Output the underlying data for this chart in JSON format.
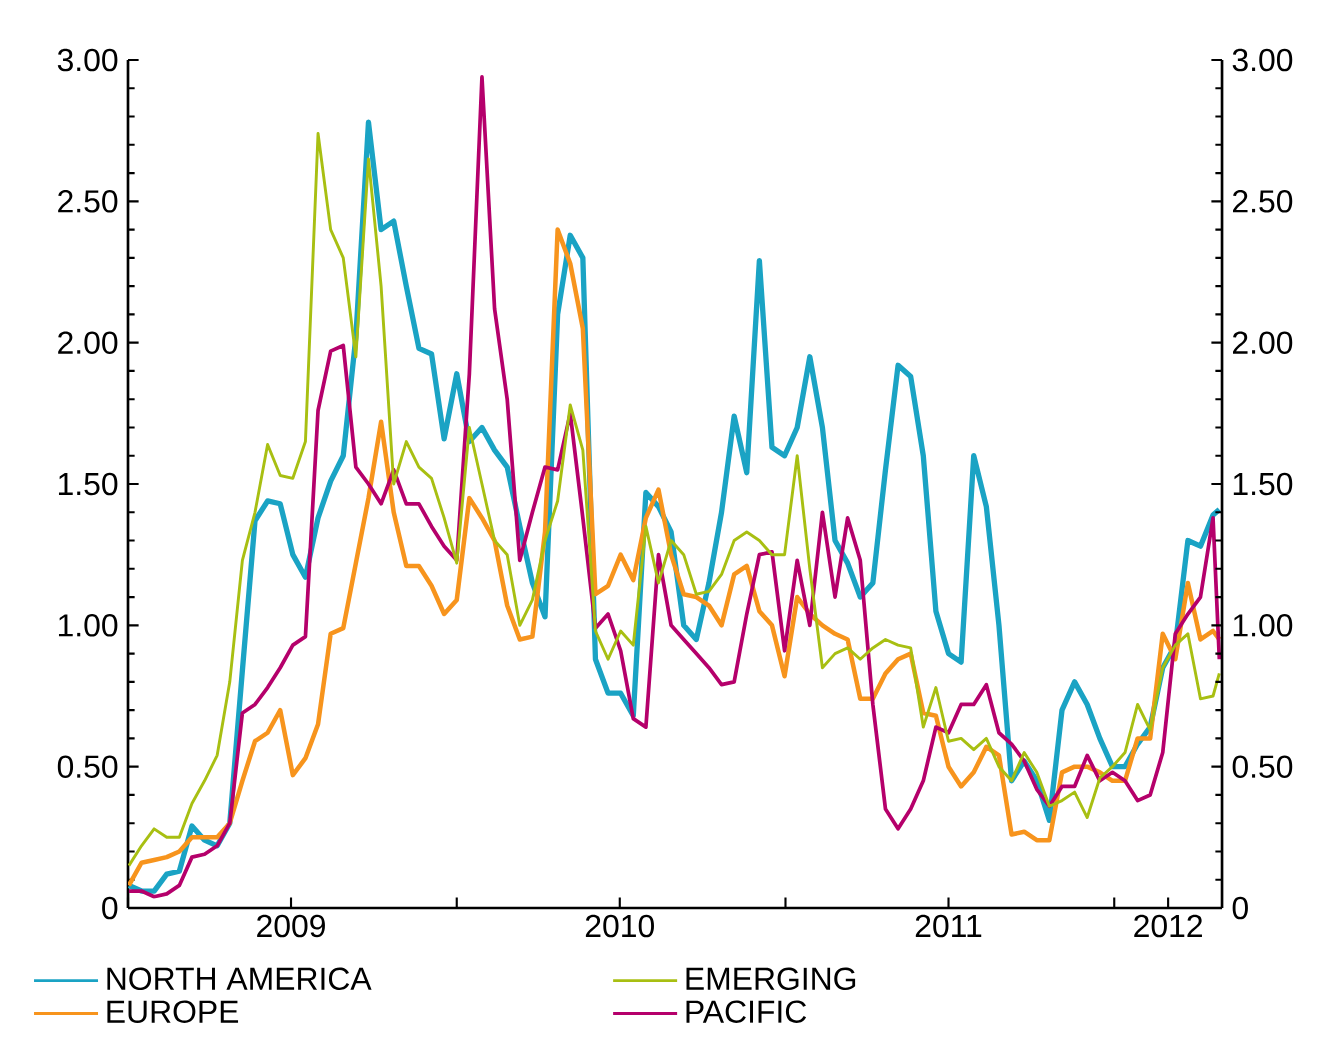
{
  "chart_data": {
    "type": "line",
    "x": [
      "2009-01-02",
      "2009-01-16",
      "2009-01-30",
      "2009-02-13",
      "2009-02-27",
      "2009-03-13",
      "2009-03-27",
      "2009-04-10",
      "2009-04-24",
      "2009-05-08",
      "2009-05-22",
      "2009-06-05",
      "2009-06-19",
      "2009-07-03",
      "2009-07-17",
      "2009-07-31",
      "2009-08-14",
      "2009-08-28",
      "2009-09-11",
      "2009-09-25",
      "2009-10-09",
      "2009-10-23",
      "2009-11-06",
      "2009-11-20",
      "2009-12-04",
      "2009-12-18",
      "2010-01-01",
      "2010-01-15",
      "2010-01-29",
      "2010-02-12",
      "2010-02-26",
      "2010-03-12",
      "2010-03-26",
      "2010-04-09",
      "2010-04-23",
      "2010-05-07",
      "2010-05-21",
      "2010-06-04",
      "2010-06-18",
      "2010-07-02",
      "2010-07-16",
      "2010-07-30",
      "2010-08-13",
      "2010-08-27",
      "2010-09-10",
      "2010-09-24",
      "2010-10-08",
      "2010-10-22",
      "2010-11-05",
      "2010-11-19",
      "2010-12-03",
      "2010-12-17",
      "2010-12-31",
      "2011-01-14",
      "2011-01-28",
      "2011-02-11",
      "2011-02-25",
      "2011-03-11",
      "2011-03-25",
      "2011-04-08",
      "2011-04-22",
      "2011-05-06",
      "2011-05-20",
      "2011-06-03",
      "2011-06-17",
      "2011-07-01",
      "2011-07-15",
      "2011-07-29",
      "2011-08-12",
      "2011-08-26",
      "2011-09-09",
      "2011-09-23",
      "2011-10-07",
      "2011-10-21",
      "2011-11-04",
      "2011-11-18",
      "2011-12-02",
      "2011-12-16",
      "2011-12-30",
      "2012-01-13",
      "2012-01-27",
      "2012-02-10",
      "2012-02-24",
      "2012-03-09",
      "2012-03-23",
      "2012-04-06",
      "2012-04-20",
      "2012-04-27"
    ],
    "series": [
      {
        "name": "NORTH AMERICA",
        "color": "#1aa3c4",
        "values": [
          0.08,
          0.06,
          0.06,
          0.12,
          0.13,
          0.29,
          0.24,
          0.22,
          0.3,
          0.84,
          1.37,
          1.44,
          1.43,
          1.25,
          1.17,
          1.38,
          1.51,
          1.6,
          2.02,
          2.78,
          2.4,
          2.43,
          2.2,
          1.98,
          1.96,
          1.66,
          1.89,
          1.65,
          1.7,
          1.62,
          1.56,
          1.35,
          1.15,
          1.03,
          2.1,
          2.38,
          2.3,
          0.88,
          0.76,
          0.76,
          0.68,
          1.47,
          1.42,
          1.33,
          1.0,
          0.95,
          1.15,
          1.4,
          1.74,
          1.54,
          2.29,
          1.63,
          1.6,
          1.7,
          1.95,
          1.7,
          1.3,
          1.22,
          1.1,
          1.15,
          1.55,
          1.92,
          1.88,
          1.6,
          1.05,
          0.9,
          0.87,
          1.6,
          1.42,
          1.0,
          0.45,
          0.52,
          0.45,
          0.31,
          0.7,
          0.8,
          0.72,
          0.6,
          0.5,
          0.5,
          0.58,
          0.64,
          0.85,
          0.93,
          1.3,
          1.28,
          1.39,
          1.41
        ]
      },
      {
        "name": "EUROPE",
        "color": "#f7941d",
        "values": [
          0.08,
          0.16,
          0.17,
          0.18,
          0.2,
          0.25,
          0.25,
          0.25,
          0.3,
          0.45,
          0.59,
          0.62,
          0.7,
          0.47,
          0.53,
          0.65,
          0.97,
          0.99,
          1.22,
          1.45,
          1.72,
          1.4,
          1.21,
          1.21,
          1.14,
          1.04,
          1.09,
          1.45,
          1.38,
          1.3,
          1.07,
          0.95,
          0.96,
          1.33,
          2.4,
          2.28,
          2.05,
          1.11,
          1.14,
          1.25,
          1.16,
          1.38,
          1.48,
          1.25,
          1.11,
          1.1,
          1.07,
          1.0,
          1.18,
          1.21,
          1.05,
          1.0,
          0.82,
          1.1,
          1.04,
          1.0,
          0.97,
          0.95,
          0.74,
          0.74,
          0.83,
          0.88,
          0.9,
          0.69,
          0.68,
          0.5,
          0.43,
          0.48,
          0.57,
          0.54,
          0.26,
          0.27,
          0.24,
          0.24,
          0.48,
          0.5,
          0.5,
          0.48,
          0.45,
          0.45,
          0.6,
          0.6,
          0.97,
          0.88,
          1.15,
          0.95,
          0.98,
          0.95
        ]
      },
      {
        "name": "PACIFIC",
        "color": "#b5006b",
        "values": [
          0.06,
          0.06,
          0.04,
          0.05,
          0.08,
          0.18,
          0.19,
          0.22,
          0.3,
          0.69,
          0.72,
          0.78,
          0.85,
          0.93,
          0.96,
          1.76,
          1.97,
          1.99,
          1.56,
          1.5,
          1.43,
          1.55,
          1.43,
          1.43,
          1.35,
          1.28,
          1.23,
          1.89,
          2.94,
          2.12,
          1.8,
          1.23,
          1.4,
          1.56,
          1.55,
          1.75,
          1.38,
          0.99,
          1.04,
          0.91,
          0.67,
          0.64,
          1.25,
          1.0,
          0.95,
          0.9,
          0.85,
          0.79,
          0.8,
          1.04,
          1.25,
          1.26,
          0.91,
          1.23,
          1.0,
          1.4,
          1.1,
          1.38,
          1.23,
          0.72,
          0.35,
          0.28,
          0.35,
          0.45,
          0.64,
          0.62,
          0.72,
          0.72,
          0.79,
          0.62,
          0.58,
          0.52,
          0.42,
          0.36,
          0.43,
          0.43,
          0.54,
          0.45,
          0.48,
          0.45,
          0.38,
          0.4,
          0.55,
          0.97,
          1.04,
          1.1,
          1.38,
          0.88
        ]
      },
      {
        "name": "EMERGING",
        "color": "#a8bf12",
        "values": [
          0.15,
          0.22,
          0.28,
          0.25,
          0.25,
          0.37,
          0.45,
          0.54,
          0.8,
          1.23,
          1.4,
          1.64,
          1.53,
          1.52,
          1.65,
          2.74,
          2.4,
          2.3,
          1.95,
          2.65,
          2.2,
          1.5,
          1.65,
          1.56,
          1.52,
          1.38,
          1.22,
          1.7,
          1.5,
          1.3,
          1.25,
          1.0,
          1.09,
          1.3,
          1.44,
          1.78,
          1.62,
          0.98,
          0.88,
          0.98,
          0.93,
          1.35,
          1.15,
          1.3,
          1.25,
          1.11,
          1.12,
          1.18,
          1.3,
          1.33,
          1.3,
          1.25,
          1.25,
          1.6,
          1.2,
          0.85,
          0.9,
          0.92,
          0.88,
          0.92,
          0.95,
          0.93,
          0.92,
          0.64,
          0.78,
          0.59,
          0.6,
          0.56,
          0.6,
          0.5,
          0.45,
          0.55,
          0.48,
          0.36,
          0.38,
          0.41,
          0.32,
          0.46,
          0.5,
          0.55,
          0.72,
          0.63,
          0.85,
          0.93,
          0.97,
          0.74,
          0.75,
          0.83
        ]
      }
    ],
    "xlim": [
      "2009-01-01",
      "2012-04-30"
    ],
    "xticks": [
      {
        "value": "2009-01-01",
        "label": null
      },
      {
        "value": "2009-07-01",
        "label": "2009"
      },
      {
        "value": "2010-01-01",
        "label": null
      },
      {
        "value": "2010-07-01",
        "label": "2010"
      },
      {
        "value": "2011-01-01",
        "label": null
      },
      {
        "value": "2011-07-01",
        "label": "2011"
      },
      {
        "value": "2012-01-01",
        "label": null
      },
      {
        "value": "2012-03-01",
        "label": "2012"
      }
    ],
    "ylim": [
      0,
      3
    ],
    "yticks": [
      0,
      {
        "value": 0.5,
        "label": "0.50"
      },
      {
        "value": 1,
        "label": "1.00"
      },
      {
        "value": 1.5,
        "label": "1.50"
      },
      {
        "value": 2,
        "label": "2.00"
      },
      {
        "value": 2.5,
        "label": "2.50"
      },
      {
        "value": 3,
        "label": "3.00"
      }
    ],
    "y2lim": [
      0,
      3
    ],
    "y2ticks": [
      0,
      {
        "value": 0.5,
        "label": "0.50"
      },
      {
        "value": 1,
        "label": "1.00"
      },
      {
        "value": 1.5,
        "label": "1.50"
      },
      {
        "value": 2,
        "label": "2.00"
      },
      {
        "value": 2.5,
        "label": "2.50"
      },
      {
        "value": 3,
        "label": "3.00"
      }
    ],
    "grid": false,
    "legend": "bottom",
    "marker": "none",
    "line_style": "solid"
  }
}
